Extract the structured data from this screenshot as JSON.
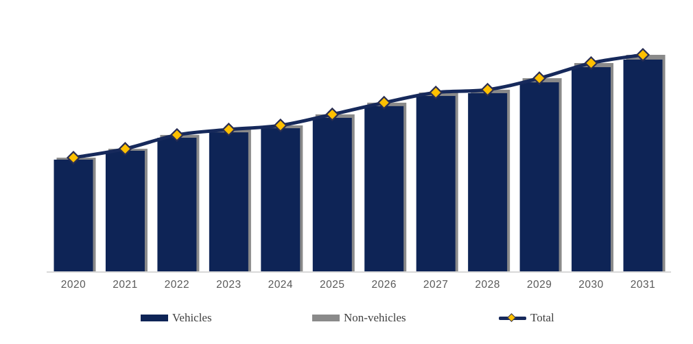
{
  "page": {
    "background": "#FFFFFF"
  },
  "chart_data": {
    "type": "combo-bar-line",
    "title": "",
    "categories": [
      "2020",
      "2021",
      "2022",
      "2023",
      "2024",
      "2025",
      "2026",
      "2027",
      "2028",
      "2029",
      "2030",
      "2031"
    ],
    "series": [
      {
        "name": "Vehicles",
        "type": "bar",
        "color": "#0E2456",
        "values": [
          51.6,
          55.7,
          61.7,
          64.2,
          66.1,
          70.9,
          76.3,
          81.0,
          82.3,
          87.3,
          94.3,
          97.8
        ]
      },
      {
        "name": "Non-vehicles",
        "type": "bar",
        "color": "#8A8A8A",
        "values": [
          0.9,
          0.9,
          1.3,
          1.3,
          1.3,
          1.6,
          1.6,
          1.6,
          1.6,
          1.9,
          1.9,
          2.2
        ]
      },
      {
        "name": "Total",
        "type": "line",
        "color": "#16295B",
        "marker": "diamond",
        "marker_fill": "#FFC000",
        "marker_stroke": "#2A2E52",
        "values": [
          52.5,
          56.6,
          63.0,
          65.5,
          67.4,
          72.5,
          77.9,
          82.6,
          83.9,
          89.2,
          96.2,
          100.0
        ]
      }
    ],
    "value_axis": {
      "visible": false,
      "units": "relative index (2031 Total = 100); the source chart displays no value axis or gridlines"
    },
    "category_axis": {
      "labels_color": "#595959",
      "line_color": "#D9D9D9"
    },
    "legend": {
      "position": "bottom"
    },
    "notes": "Gray Non-vehicles bars are drawn behind the navy Vehicles bars at full stack height (Vehicles + Non-vehicles), slightly offset right; the smoothed Total line with gold diamond markers tracks the stack tops."
  }
}
